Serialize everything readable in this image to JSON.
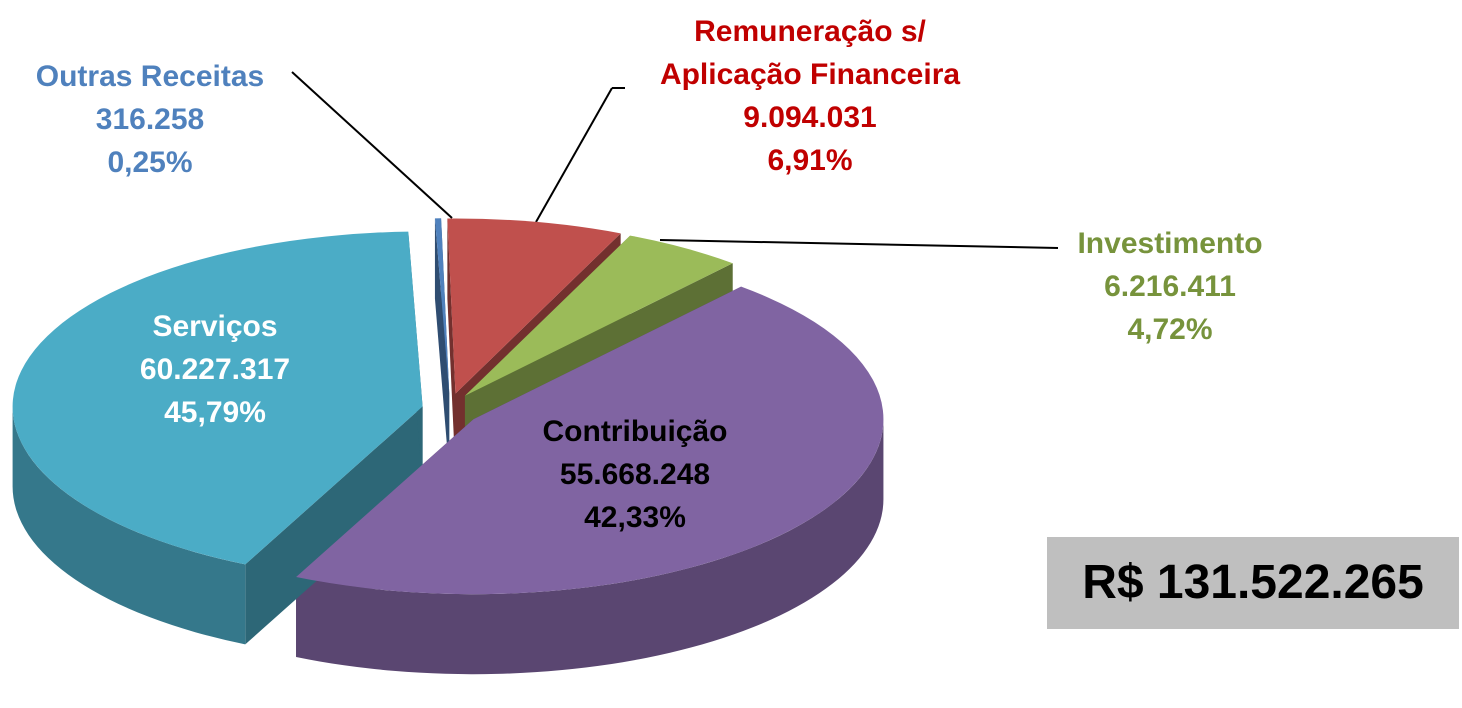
{
  "chart_data": {
    "type": "pie",
    "categories": [
      "Outras Receitas",
      "Remuneração s/ Aplicação Financeira",
      "Investimento",
      "Serviços",
      "Contribuição"
    ],
    "values": [
      316258,
      9094031,
      6216411,
      60227317,
      55668248
    ],
    "value_labels": [
      "316.258",
      "9.094.031",
      "6.216.411",
      "60.227.317",
      "55.668.248"
    ],
    "percents": [
      0.25,
      6.91,
      4.72,
      45.79,
      42.33
    ],
    "percent_labels": [
      "0,25%",
      "6,91%",
      "4,72%",
      "45,79%",
      "42,33%"
    ],
    "colors": [
      "#4f81bd",
      "#c0504d",
      "#9bbb59",
      "#8064a2",
      "#4bacc6"
    ],
    "label_colors": [
      "#4f81bd",
      "#c00000",
      "#77933c",
      "#ffffff",
      "#000000"
    ],
    "total_label": "R$ 131.522.265"
  }
}
